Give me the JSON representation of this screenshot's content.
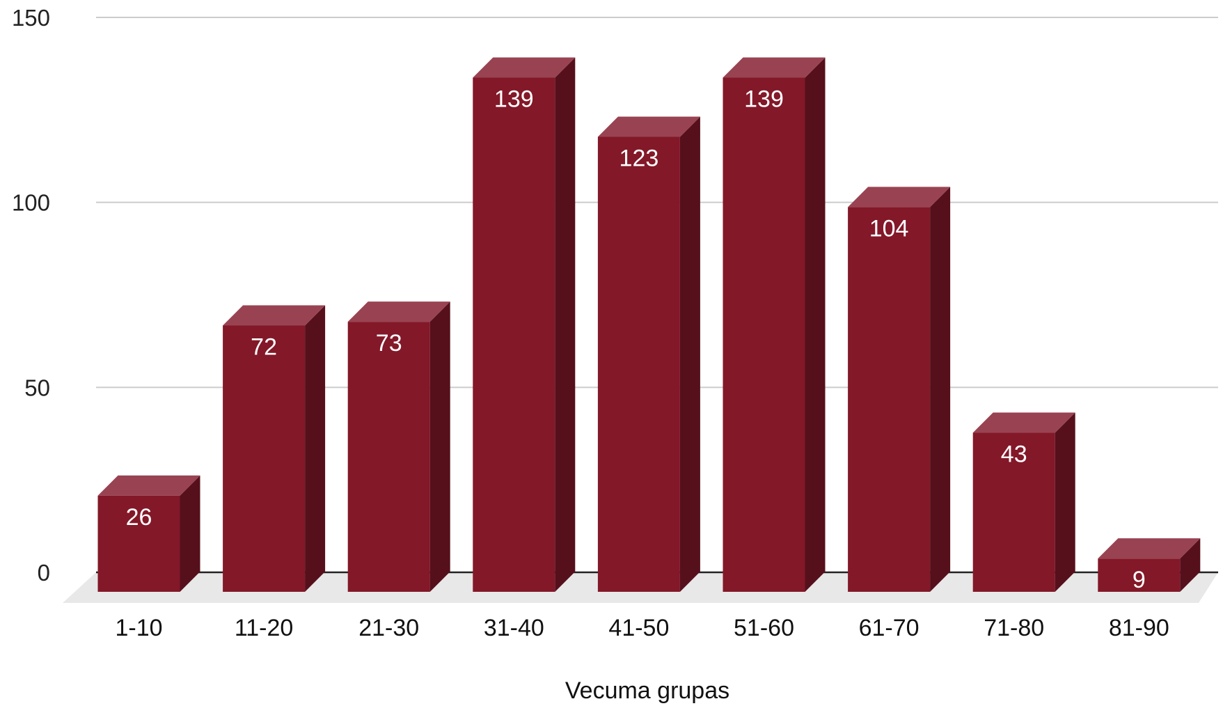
{
  "chart_data": {
    "type": "bar",
    "categories": [
      "1-10",
      "11-20",
      "21-30",
      "31-40",
      "41-50",
      "51-60",
      "61-70",
      "71-80",
      "81-90"
    ],
    "values": [
      26,
      72,
      73,
      139,
      123,
      139,
      104,
      43,
      9
    ],
    "title": "",
    "xlabel": "Vecuma grupas",
    "ylabel": "",
    "ylim": [
      0,
      150
    ],
    "yticks": [
      0,
      50,
      100,
      150
    ],
    "grid": true,
    "legend": "none",
    "data_labels": true,
    "style_3d": true,
    "colors": {
      "bar_front": "#831828",
      "bar_top": "#994352",
      "bar_side": "#56101b",
      "floor": "#e8e8e8",
      "gridline": "#cccccc",
      "label_text": "#ffffff"
    }
  }
}
